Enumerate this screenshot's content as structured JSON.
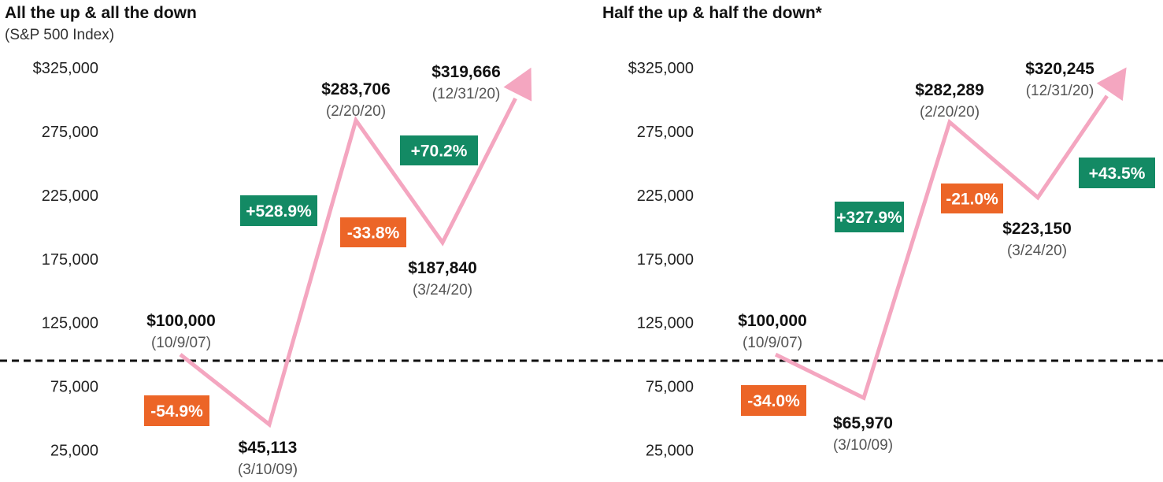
{
  "chart_data": [
    {
      "type": "line",
      "title": "All the up & all the down",
      "subtitle": "(S&P 500 Index)",
      "y_ticks": [
        "$325,000",
        "275,000",
        "225,000",
        "175,000",
        "125,000",
        "75,000",
        "25,000"
      ],
      "points": [
        {
          "x": "10/9/07",
          "y": 100000,
          "label": "$100,000",
          "date": "(10/9/07)"
        },
        {
          "x": "3/10/09",
          "y": 45113,
          "label": "$45,113",
          "date": "(3/10/09)"
        },
        {
          "x": "2/20/20",
          "y": 283706,
          "label": "$283,706",
          "date": "(2/20/20)"
        },
        {
          "x": "3/24/20",
          "y": 187840,
          "label": "$187,840",
          "date": "(3/24/20)"
        },
        {
          "x": "12/31/20",
          "y": 319666,
          "label": "$319,666",
          "date": "(12/31/20)"
        }
      ],
      "changes": [
        {
          "label": "-54.9%",
          "direction": "down"
        },
        {
          "label": "+528.9%",
          "direction": "up"
        },
        {
          "label": "-33.8%",
          "direction": "down"
        },
        {
          "label": "+70.2%",
          "direction": "up"
        }
      ],
      "baseline": 100000
    },
    {
      "type": "line",
      "title": "Half the up & half the down*",
      "y_ticks": [
        "$325,000",
        "275,000",
        "225,000",
        "175,000",
        "125,000",
        "75,000",
        "25,000"
      ],
      "points": [
        {
          "x": "10/9/07",
          "y": 100000,
          "label": "$100,000",
          "date": "(10/9/07)"
        },
        {
          "x": "3/10/09",
          "y": 65970,
          "label": "$65,970",
          "date": "(3/10/09)"
        },
        {
          "x": "2/20/20",
          "y": 282289,
          "label": "$282,289",
          "date": "(2/20/20)"
        },
        {
          "x": "3/24/20",
          "y": 223150,
          "label": "$223,150",
          "date": "(3/24/20)"
        },
        {
          "x": "12/31/20",
          "y": 320245,
          "label": "$320,245",
          "date": "(12/31/20)"
        }
      ],
      "changes": [
        {
          "label": "-34.0%",
          "direction": "down"
        },
        {
          "label": "+327.9%",
          "direction": "up"
        },
        {
          "label": "-21.0%",
          "direction": "down"
        },
        {
          "label": "+43.5%",
          "direction": "up"
        }
      ],
      "baseline": 100000
    }
  ],
  "colors": {
    "line": "#f4a6c0",
    "up": "#138a64",
    "down": "#ec6527",
    "baseline": "#111111"
  }
}
